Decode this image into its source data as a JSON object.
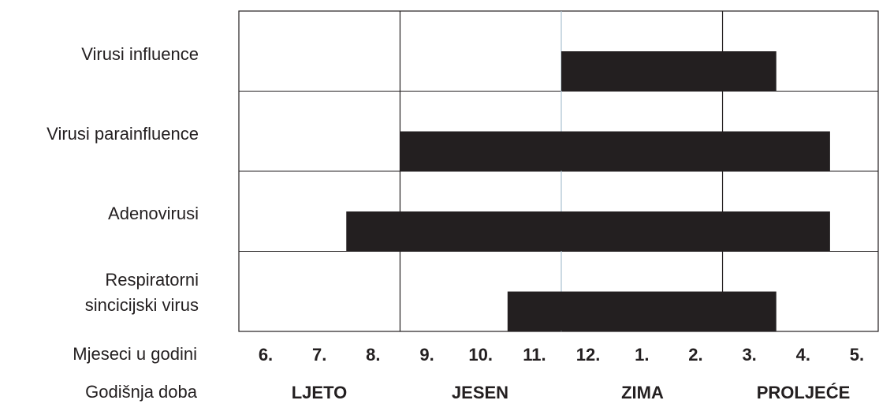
{
  "chart_data": {
    "type": "bar",
    "orientation": "horizontal-range",
    "categories": [
      "Virusi influence",
      "Virusi parainfluence",
      "Adenovirusi",
      "Respiratorni sincicijski virus"
    ],
    "category_lines": [
      [
        "Virusi influence"
      ],
      [
        "Virusi parainfluence"
      ],
      [
        "Adenovirusi"
      ],
      [
        "Respiratorni",
        "sincicijski virus"
      ]
    ],
    "months": [
      "6.",
      "7.",
      "8.",
      "9.",
      "10.",
      "11.",
      "12.",
      "1.",
      "2.",
      "3.",
      "4.",
      "5."
    ],
    "ranges": [
      {
        "start_month": "12.",
        "end_month": "3."
      },
      {
        "start_month": "9.",
        "end_month": "4."
      },
      {
        "start_month": "8.",
        "end_month": "4."
      },
      {
        "start_month": "11.",
        "end_month": "3."
      }
    ],
    "seasons": [
      "LJETO",
      "JESEN",
      "ZIMA",
      "PROLJEĆE"
    ],
    "xlabel": "Mjeseci u godini",
    "season_axis_label": "Godišnja doba",
    "bar_color": "#231f20",
    "grid": true
  }
}
